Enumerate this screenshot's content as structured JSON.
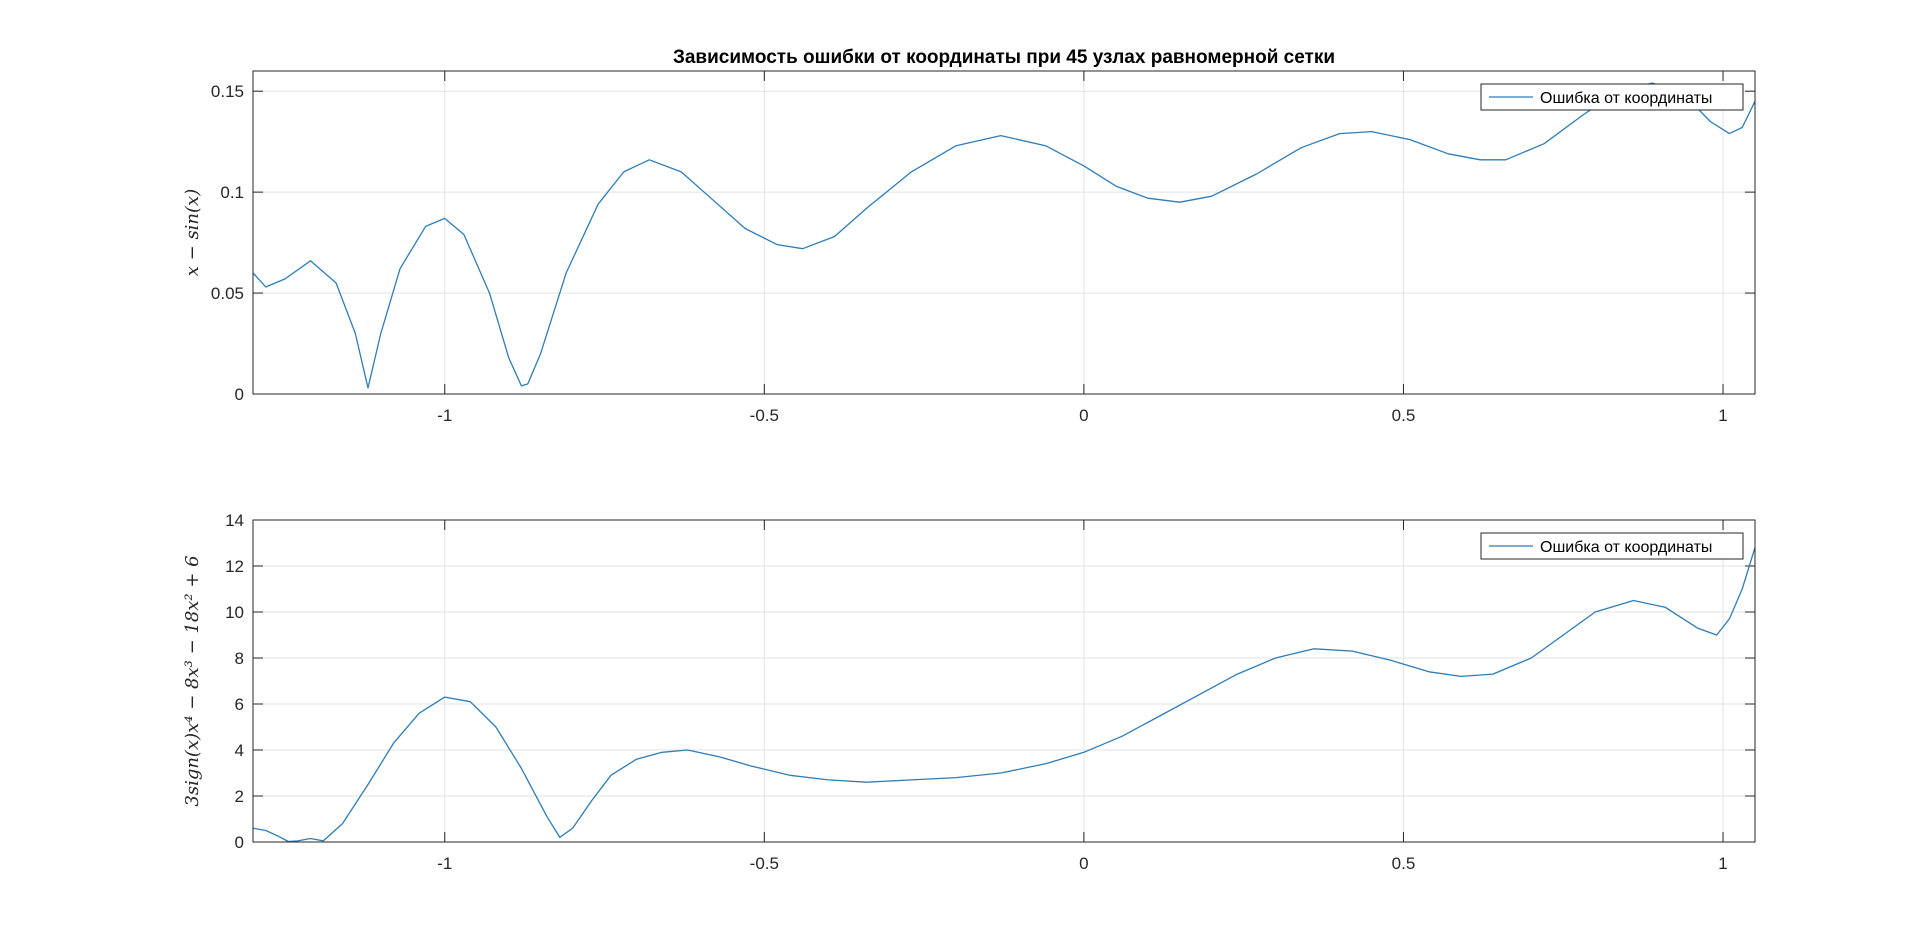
{
  "colors": {
    "series": "#2d7db8",
    "grid": "#e3e3e3",
    "axis": "#262626"
  },
  "chart_data": [
    {
      "type": "line",
      "title": "Зависимость ошибки от координаты при 45 узлах равномерной сетки",
      "xlabel": "",
      "ylabel": "x − sin(x)",
      "xlim": [
        -1.3,
        1.05
      ],
      "ylim": [
        0,
        0.16
      ],
      "xticks": [
        -1,
        -0.5,
        0,
        0.5,
        1
      ],
      "xtick_labels": [
        "-1",
        "-0.5",
        "0",
        "0.5",
        "1"
      ],
      "yticks": [
        0,
        0.05,
        0.1,
        0.15
      ],
      "ytick_labels": [
        "0",
        "0.05",
        "0.1",
        "0.15"
      ],
      "grid": true,
      "legend": "top-right",
      "series": [
        {
          "name": "Ошибка от координаты",
          "x": [
            -1.3,
            -1.28,
            -1.25,
            -1.21,
            -1.17,
            -1.14,
            -1.12,
            -1.1,
            -1.07,
            -1.03,
            -1.0,
            -0.97,
            -0.93,
            -0.9,
            -0.88,
            -0.87,
            -0.85,
            -0.81,
            -0.76,
            -0.72,
            -0.68,
            -0.63,
            -0.58,
            -0.53,
            -0.48,
            -0.44,
            -0.39,
            -0.34,
            -0.27,
            -0.2,
            -0.13,
            -0.06,
            0.0,
            0.05,
            0.1,
            0.15,
            0.2,
            0.27,
            0.34,
            0.4,
            0.45,
            0.51,
            0.57,
            0.62,
            0.66,
            0.72,
            0.78,
            0.84,
            0.89,
            0.94,
            0.98,
            1.01,
            1.03,
            1.05
          ],
          "y": [
            0.06,
            0.053,
            0.057,
            0.066,
            0.055,
            0.03,
            0.003,
            0.03,
            0.062,
            0.083,
            0.087,
            0.079,
            0.05,
            0.018,
            0.004,
            0.005,
            0.02,
            0.06,
            0.094,
            0.11,
            0.116,
            0.11,
            0.096,
            0.082,
            0.074,
            0.072,
            0.078,
            0.092,
            0.11,
            0.123,
            0.128,
            0.123,
            0.113,
            0.103,
            0.097,
            0.095,
            0.098,
            0.109,
            0.122,
            0.129,
            0.13,
            0.126,
            0.119,
            0.116,
            0.116,
            0.124,
            0.138,
            0.151,
            0.154,
            0.148,
            0.135,
            0.129,
            0.132,
            0.145
          ]
        }
      ]
    },
    {
      "type": "line",
      "title": "",
      "xlabel": "",
      "ylabel": "3sign(x)x⁴ − 8x³ − 18x² + 6",
      "xlim": [
        -1.3,
        1.05
      ],
      "ylim": [
        0,
        14
      ],
      "xticks": [
        -1,
        -0.5,
        0,
        0.5,
        1
      ],
      "xtick_labels": [
        "-1",
        "-0.5",
        "0",
        "0.5",
        "1"
      ],
      "yticks": [
        0,
        2,
        4,
        6,
        8,
        10,
        12,
        14
      ],
      "ytick_labels": [
        "0",
        "2",
        "4",
        "6",
        "8",
        "10",
        "12",
        "14"
      ],
      "grid": true,
      "legend": "top-right",
      "series": [
        {
          "name": "Ошибка от координаты",
          "x": [
            -1.3,
            -1.28,
            -1.26,
            -1.245,
            -1.23,
            -1.21,
            -1.19,
            -1.16,
            -1.12,
            -1.08,
            -1.04,
            -1.0,
            -0.96,
            -0.92,
            -0.88,
            -0.84,
            -0.82,
            -0.8,
            -0.77,
            -0.74,
            -0.7,
            -0.66,
            -0.62,
            -0.57,
            -0.52,
            -0.46,
            -0.4,
            -0.34,
            -0.27,
            -0.2,
            -0.13,
            -0.06,
            0.0,
            0.06,
            0.12,
            0.18,
            0.24,
            0.3,
            0.36,
            0.42,
            0.48,
            0.54,
            0.59,
            0.64,
            0.7,
            0.75,
            0.8,
            0.86,
            0.91,
            0.96,
            0.99,
            1.01,
            1.03,
            1.05
          ],
          "y": [
            0.6,
            0.5,
            0.25,
            0.02,
            0.05,
            0.15,
            0.05,
            0.8,
            2.5,
            4.3,
            5.6,
            6.3,
            6.1,
            5.0,
            3.2,
            1.1,
            0.2,
            0.6,
            1.8,
            2.9,
            3.6,
            3.9,
            4.0,
            3.7,
            3.3,
            2.9,
            2.7,
            2.6,
            2.7,
            2.8,
            3.0,
            3.4,
            3.9,
            4.6,
            5.5,
            6.4,
            7.3,
            8.0,
            8.4,
            8.3,
            7.9,
            7.4,
            7.2,
            7.3,
            8.0,
            9.0,
            10.0,
            10.5,
            10.2,
            9.3,
            9.0,
            9.7,
            11.0,
            12.8
          ]
        }
      ]
    }
  ]
}
